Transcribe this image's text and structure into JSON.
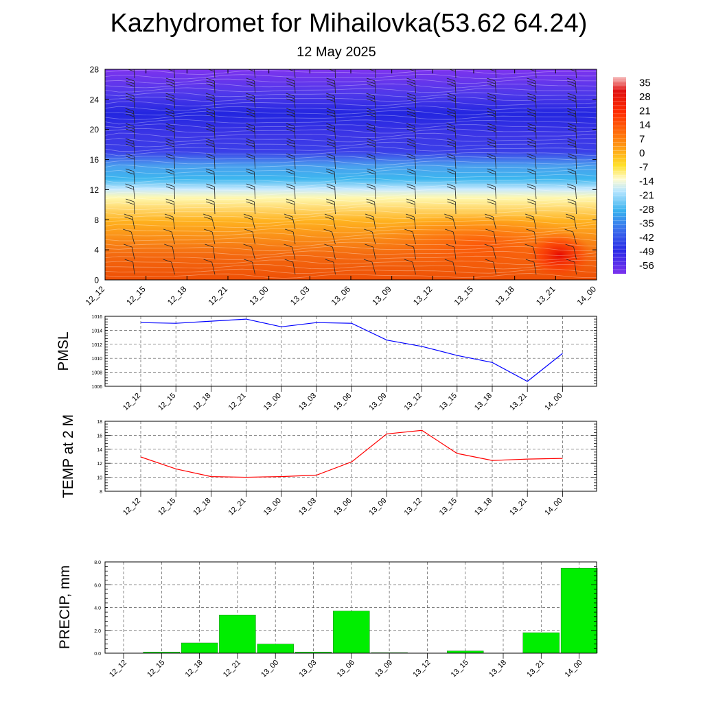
{
  "header": {
    "title": "Kazhydromet for Mihailovka(53.62 64.24)",
    "subtitle": "12 May 2025"
  },
  "chart_data": [
    {
      "type": "heatmap",
      "name": "vertical-section",
      "x_ticks": [
        "12_12",
        "12_15",
        "12_18",
        "12_21",
        "13_00",
        "13_03",
        "13_06",
        "13_09",
        "13_12",
        "13_15",
        "13_18",
        "13_21",
        "14_00"
      ],
      "y_ticks": [
        "0",
        "4",
        "8",
        "12",
        "16",
        "20",
        "24",
        "28"
      ],
      "ylim": [
        0,
        28
      ],
      "colorbar_labels": [
        "35",
        "28",
        "21",
        "14",
        "7",
        "0",
        "-7",
        "-14",
        "-21",
        "-28",
        "-35",
        "-42",
        "-49",
        "-56"
      ],
      "colorbar_range": [
        -60,
        38
      ],
      "wind_barbs": true
    },
    {
      "type": "line",
      "name": "pmsl",
      "ylabel": "PMSL",
      "x": [
        "12_12",
        "12_15",
        "12_18",
        "12_21",
        "13_00",
        "13_03",
        "13_06",
        "13_09",
        "13_12",
        "13_15",
        "13_18",
        "13_21",
        "14_00"
      ],
      "values": [
        1015.1,
        1015.0,
        1015.3,
        1015.6,
        1014.5,
        1015.1,
        1015.0,
        1012.6,
        1011.7,
        1010.4,
        1009.4,
        1006.7,
        1010.7
      ],
      "ylim": [
        1006,
        1016
      ],
      "y_ticks": [
        "1006",
        "1008",
        "1010",
        "1012",
        "1014",
        "1016"
      ],
      "color": "#0000ff",
      "grid": true
    },
    {
      "type": "line",
      "name": "temp2m",
      "ylabel": "TEMP at 2 M",
      "x": [
        "12_12",
        "12_15",
        "12_18",
        "12_21",
        "13_00",
        "13_03",
        "13_06",
        "13_09",
        "13_12",
        "13_15",
        "13_18",
        "13_21",
        "14_00"
      ],
      "values": [
        12.9,
        11.2,
        10.1,
        10.0,
        10.1,
        10.3,
        12.2,
        16.2,
        16.7,
        13.4,
        12.4,
        12.6,
        12.7
      ],
      "ylim": [
        8,
        18
      ],
      "y_ticks": [
        "8",
        "10",
        "12",
        "14",
        "16",
        "18"
      ],
      "color": "#ff0000",
      "grid": true
    },
    {
      "type": "bar",
      "name": "precip",
      "ylabel": "PRECIP, mm",
      "categories": [
        "12_12",
        "12_15",
        "12_18",
        "12_21",
        "13_00",
        "13_03",
        "13_06",
        "13_09",
        "13_12",
        "13_15",
        "13_18",
        "13_21",
        "14_00"
      ],
      "values": [
        0.0,
        0.1,
        0.9,
        3.35,
        0.8,
        0.1,
        3.7,
        0.05,
        0.0,
        0.2,
        0.02,
        1.8,
        7.45
      ],
      "ylim": [
        0,
        8
      ],
      "y_ticks": [
        "0.0",
        "2.0",
        "4.0",
        "6.0",
        "8.0"
      ],
      "color": "#00ee00",
      "grid": true
    }
  ]
}
